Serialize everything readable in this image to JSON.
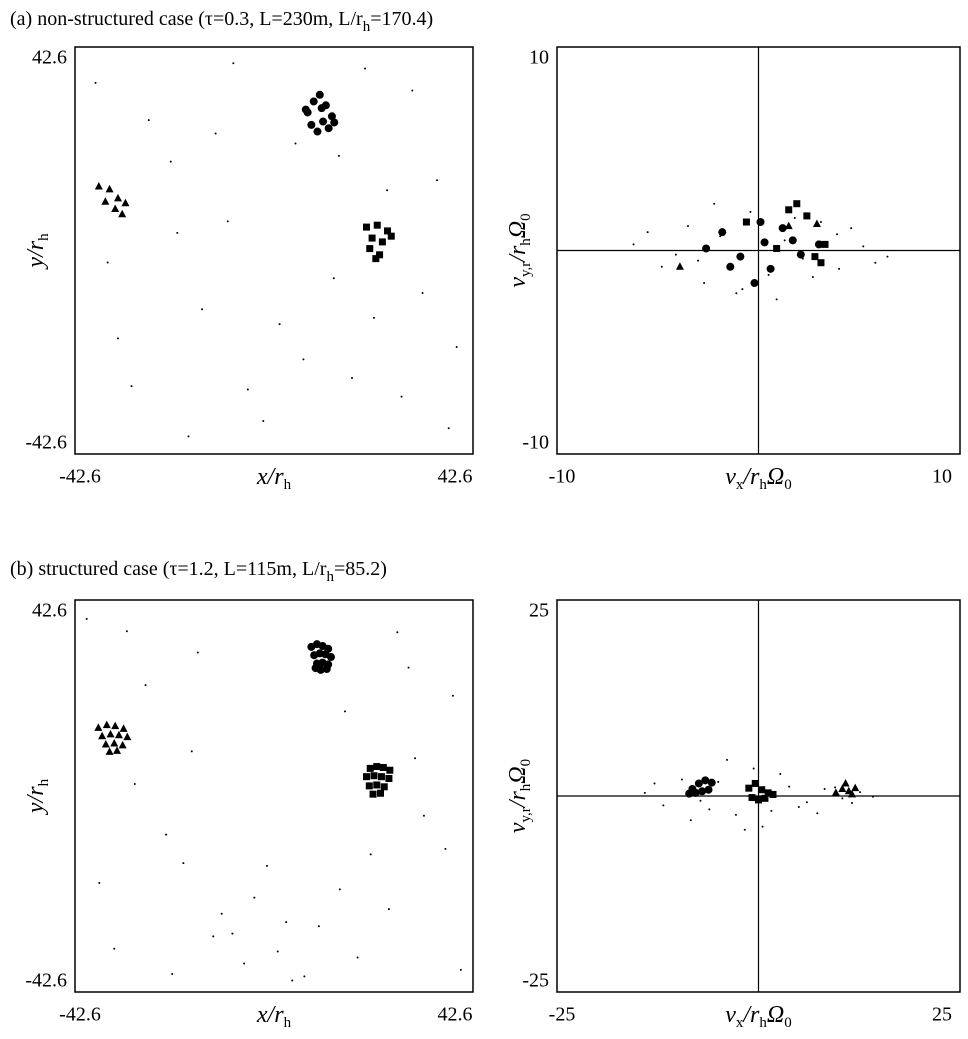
{
  "chart_data": [
    {
      "type": "scatter",
      "title": [
        "(a) non-structured case  (τ=0.3, L=230m, L/r",
        "h",
        "=170.4)"
      ],
      "xlabel": [
        "x/r",
        "h"
      ],
      "ylabel": [
        "y/r",
        "h"
      ],
      "xlim": [
        -42.6,
        42.6
      ],
      "ylim": [
        -42.6,
        42.6
      ],
      "xticks": [
        -42.6,
        42.6
      ],
      "yticks": [
        -42.6,
        42.6
      ],
      "zero_lines": false,
      "series": [
        {
          "marker": "dot",
          "color": "#000000",
          "x": [
            -38.2,
            -30.5,
            -22.1,
            -15.4,
            -8.7,
            -2.3,
            4.6,
            12.8,
            19.5,
            27.3,
            34.9,
            39.1,
            -35.6,
            -26.8,
            -18.3,
            -9.9,
            1.2,
            8.4,
            16.7,
            24.2,
            31.8,
            -33.4,
            -20.7,
            -5.6,
            13.9,
            29.6,
            37.4,
            -12.5,
            6.3,
            21.4
          ],
          "values": [
            35.1,
            -28.4,
            18.6,
            -12.3,
            39.2,
            -35.7,
            22.4,
            -5.8,
            38.1,
            -30.6,
            14.7,
            -20.2,
            -2.5,
            27.3,
            -38.9,
            6.1,
            -15.4,
            31.8,
            -26.7,
            12.6,
            -8.9,
            -18.4,
            3.7,
            -29.1,
            19.8,
            33.5,
            -37.2,
            24.5,
            -22.8,
            -14.1
          ]
        },
        {
          "marker": "circle",
          "color": "#000000",
          "x": [
            7.2,
            8.5,
            9.8,
            11.1,
            12.4,
            8.0,
            10.5,
            12.9,
            6.8,
            9.3,
            11.7,
            10.2
          ],
          "values": [
            28.9,
            31.2,
            32.6,
            30.4,
            28.1,
            26.3,
            27.0,
            26.8,
            29.5,
            24.9,
            25.6,
            29.8
          ]
        },
        {
          "marker": "triangle",
          "color": "#000000",
          "x": [
            -37.5,
            -35.2,
            -33.4,
            -36.1,
            -34.0,
            -31.8,
            -32.5
          ],
          "values": [
            13.4,
            12.8,
            10.9,
            10.2,
            8.7,
            9.9,
            7.6
          ]
        },
        {
          "marker": "square",
          "color": "#000000",
          "x": [
            19.8,
            22.1,
            24.3,
            21.0,
            23.2,
            20.5,
            22.6,
            25.1,
            21.8
          ],
          "values": [
            4.9,
            5.3,
            4.1,
            2.6,
            1.8,
            0.4,
            -0.9,
            3.0,
            -1.7
          ]
        }
      ]
    },
    {
      "type": "scatter",
      "xlabel": [
        "v",
        "x",
        "/r",
        "h",
        "Ω",
        "0"
      ],
      "ylabel": [
        "v",
        "y,r",
        "/r",
        "h",
        "Ω",
        "0"
      ],
      "xlim": [
        -10,
        10
      ],
      "ylim": [
        -10,
        10
      ],
      "xticks": [
        -10,
        10
      ],
      "yticks": [
        -10,
        10
      ],
      "zero_lines": true,
      "series": [
        {
          "marker": "dot",
          "color": "#000000",
          "x": [
            -6.2,
            -4.8,
            -3.5,
            -2.7,
            -1.9,
            -1.1,
            -0.4,
            0.5,
            1.3,
            2.2,
            3.1,
            4.0,
            5.2,
            6.4,
            -5.5,
            -3.0,
            -0.8,
            1.8,
            3.9,
            5.8,
            -2.2,
            0.9,
            2.7,
            -4.1,
            4.6
          ],
          "values": [
            0.3,
            -0.8,
            1.2,
            -1.6,
            0.7,
            -2.1,
            1.9,
            -1.2,
            0.5,
            -0.4,
            1.4,
            -0.9,
            0.2,
            -0.3,
            0.9,
            -0.5,
            -1.9,
            1.6,
            0.8,
            -0.6,
            2.3,
            -2.4,
            -1.3,
            -0.2,
            1.1
          ]
        },
        {
          "marker": "circle",
          "color": "#000000",
          "x": [
            -1.8,
            -0.9,
            0.3,
            1.2,
            2.1,
            -1.4,
            0.6,
            1.7,
            -0.2,
            3.0,
            -2.6,
            0.1
          ],
          "values": [
            0.9,
            -0.3,
            0.4,
            1.1,
            -0.2,
            -0.8,
            -0.9,
            0.5,
            -1.6,
            0.3,
            0.1,
            1.4
          ]
        },
        {
          "marker": "square",
          "color": "#000000",
          "x": [
            1.9,
            2.4,
            3.3,
            -0.6,
            0.9,
            3.1,
            2.8,
            1.5
          ],
          "values": [
            2.3,
            1.7,
            0.3,
            1.4,
            0.1,
            -0.6,
            -0.3,
            2.0
          ]
        },
        {
          "marker": "triangle",
          "color": "#000000",
          "x": [
            -3.9,
            1.5,
            2.9
          ],
          "values": [
            -0.8,
            1.2,
            1.3
          ]
        }
      ]
    },
    {
      "type": "scatter",
      "title": [
        "(b) structured case  (τ=1.2, L=115m, L/r",
        "h",
        "=85.2)"
      ],
      "xlabel": [
        "x/r",
        "h"
      ],
      "ylabel": [
        "y/r",
        "h"
      ],
      "xlim": [
        -42.6,
        42.6
      ],
      "ylim": [
        -42.6,
        42.6
      ],
      "xticks": [
        -42.6,
        42.6
      ],
      "yticks": [
        -42.6,
        42.6
      ],
      "zero_lines": false,
      "series": [
        {
          "marker": "dot",
          "color": "#000000",
          "x": [
            -40.1,
            -34.2,
            -27.5,
            -21.8,
            -16.3,
            -11.2,
            -6.4,
            -1.5,
            3.9,
            9.6,
            15.2,
            20.7,
            26.4,
            32.1,
            38.3,
            -37.4,
            -29.8,
            -23.1,
            -17.6,
            -13.0,
            -4.2,
            0.8,
            6.5,
            17.9,
            24.6,
            30.2,
            36.7,
            -31.5,
            -19.4,
            -8.9,
            2.6,
            14.1,
            28.8,
            40.0
          ],
          "values": [
            38.5,
            -33.2,
            24.1,
            -38.7,
            31.2,
            -25.6,
            -36.4,
            -15.2,
            -40.1,
            -28.3,
            18.4,
            -12.7,
            35.6,
            -4.3,
            21.8,
            -18.9,
            2.6,
            -8.4,
            9.7,
            -30.5,
            -22.1,
            -33.8,
            -39.2,
            -35.1,
            -24.6,
            8.2,
            -11.5,
            35.8,
            -14.6,
            -29.9,
            -27.4,
            -20.3,
            27.9,
            -37.8
          ]
        },
        {
          "marker": "circle",
          "color": "#000000",
          "x": [
            8.0,
            9.2,
            10.4,
            11.6,
            8.6,
            9.8,
            11.0,
            12.2,
            9.2,
            10.4,
            11.6,
            10.0,
            8.9,
            11.3
          ],
          "values": [
            32.4,
            33.0,
            32.6,
            32.0,
            30.6,
            31.0,
            30.8,
            30.2,
            28.8,
            29.0,
            28.6,
            27.4,
            27.8,
            27.6
          ]
        },
        {
          "marker": "triangle",
          "color": "#000000",
          "x": [
            -37.6,
            -35.8,
            -34.0,
            -32.2,
            -36.8,
            -35.0,
            -33.2,
            -31.4,
            -36.0,
            -34.2,
            -32.4,
            -35.2,
            -33.6
          ],
          "values": [
            14.8,
            15.4,
            15.2,
            14.6,
            13.0,
            13.4,
            13.2,
            12.8,
            11.2,
            11.4,
            11.0,
            9.6,
            9.8
          ]
        },
        {
          "marker": "square",
          "color": "#000000",
          "x": [
            20.6,
            22.0,
            23.4,
            24.8,
            19.8,
            21.4,
            23.0,
            24.6,
            20.4,
            22.0,
            23.6,
            21.2,
            22.8
          ],
          "values": [
            6.0,
            6.4,
            6.2,
            5.6,
            4.2,
            4.4,
            4.2,
            3.8,
            2.2,
            2.4,
            2.0,
            0.4,
            0.6
          ]
        }
      ]
    },
    {
      "type": "scatter",
      "xlabel": [
        "v",
        "x",
        "/r",
        "h",
        "Ω",
        "0"
      ],
      "ylabel": [
        "v",
        "y,r",
        "/r",
        "h",
        "Ω",
        "0"
      ],
      "xlim": [
        -25,
        25
      ],
      "ylim": [
        -25,
        25
      ],
      "xticks": [
        -25,
        25
      ],
      "yticks": [
        -25,
        25
      ],
      "zero_lines": true,
      "series": [
        {
          "marker": "dot",
          "color": "#000000",
          "x": [
            -14.1,
            -11.8,
            -9.5,
            -7.2,
            -5.0,
            -2.8,
            -0.6,
            1.6,
            3.8,
            6.0,
            8.2,
            10.4,
            12.6,
            14.2,
            -12.9,
            -8.4,
            -3.9,
            0.5,
            5.0,
            9.5,
            -6.1,
            2.7,
            7.3,
            -1.7,
            11.6
          ],
          "values": [
            0.4,
            -1.2,
            2.1,
            -0.6,
            1.8,
            -2.4,
            3.5,
            -1.9,
            1.2,
            -0.8,
            0.9,
            -0.3,
            0.5,
            -0.1,
            1.6,
            -3.1,
            4.6,
            -3.9,
            -1.4,
            1.1,
            -1.7,
            2.8,
            -2.2,
            -4.3,
            -0.9
          ]
        },
        {
          "marker": "circle",
          "color": "#000000",
          "x": [
            -8.2,
            -7.4,
            -6.6,
            -5.8,
            -7.8,
            -7.0,
            -6.2,
            -8.6
          ],
          "values": [
            0.9,
            1.6,
            2.0,
            1.7,
            0.4,
            0.6,
            0.8,
            0.3
          ]
        },
        {
          "marker": "square",
          "color": "#000000",
          "x": [
            -1.2,
            -0.4,
            0.4,
            1.2,
            -0.8,
            0.0,
            0.8,
            1.8
          ],
          "values": [
            1.0,
            1.6,
            0.8,
            0.4,
            -0.2,
            -0.5,
            -0.3,
            0.2
          ]
        },
        {
          "marker": "triangle",
          "color": "#000000",
          "x": [
            9.6,
            10.4,
            11.2,
            12.0,
            10.8,
            11.6
          ],
          "values": [
            0.4,
            0.9,
            0.6,
            1.0,
            1.6,
            0.2
          ]
        }
      ]
    }
  ]
}
